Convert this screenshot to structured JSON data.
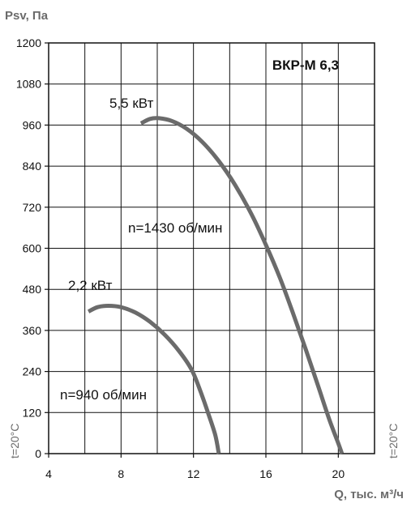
{
  "chart_data": {
    "type": "line",
    "title": "ВКР-М 6,3",
    "xlabel": "Q, тыс. м³/ч",
    "ylabel": "Psv, Па",
    "xlim": [
      4,
      22
    ],
    "ylim": [
      0,
      1200
    ],
    "x_ticks": [
      4,
      8,
      12,
      16,
      20
    ],
    "y_ticks": [
      0,
      120,
      240,
      360,
      480,
      600,
      720,
      840,
      960,
      1080,
      1200
    ],
    "grid": true,
    "temperature_label": "t=20°C",
    "series": [
      {
        "power_label": "5,5 кВт",
        "speed_label": "n=1430 об/мин",
        "color": "#6b6b6b",
        "points": [
          [
            9.1,
            965
          ],
          [
            9.6,
            978
          ],
          [
            10.1,
            980
          ],
          [
            10.8,
            972
          ],
          [
            11.6,
            950
          ],
          [
            12.5,
            910
          ],
          [
            13.4,
            855
          ],
          [
            14.3,
            785
          ],
          [
            15.2,
            700
          ],
          [
            16.0,
            610
          ],
          [
            16.8,
            510
          ],
          [
            17.5,
            410
          ],
          [
            18.2,
            305
          ],
          [
            18.9,
            195
          ],
          [
            19.5,
            100
          ],
          [
            20.0,
            30
          ],
          [
            20.2,
            0
          ]
        ]
      },
      {
        "power_label": "2,2 кВт",
        "speed_label": "n=940 об/мин",
        "color": "#6b6b6b",
        "points": [
          [
            6.2,
            415
          ],
          [
            6.7,
            428
          ],
          [
            7.3,
            432
          ],
          [
            8.0,
            428
          ],
          [
            8.8,
            412
          ],
          [
            9.6,
            385
          ],
          [
            10.4,
            348
          ],
          [
            11.2,
            300
          ],
          [
            11.9,
            245
          ],
          [
            12.4,
            180
          ],
          [
            12.8,
            120
          ],
          [
            13.2,
            55
          ],
          [
            13.4,
            0
          ]
        ]
      }
    ]
  }
}
